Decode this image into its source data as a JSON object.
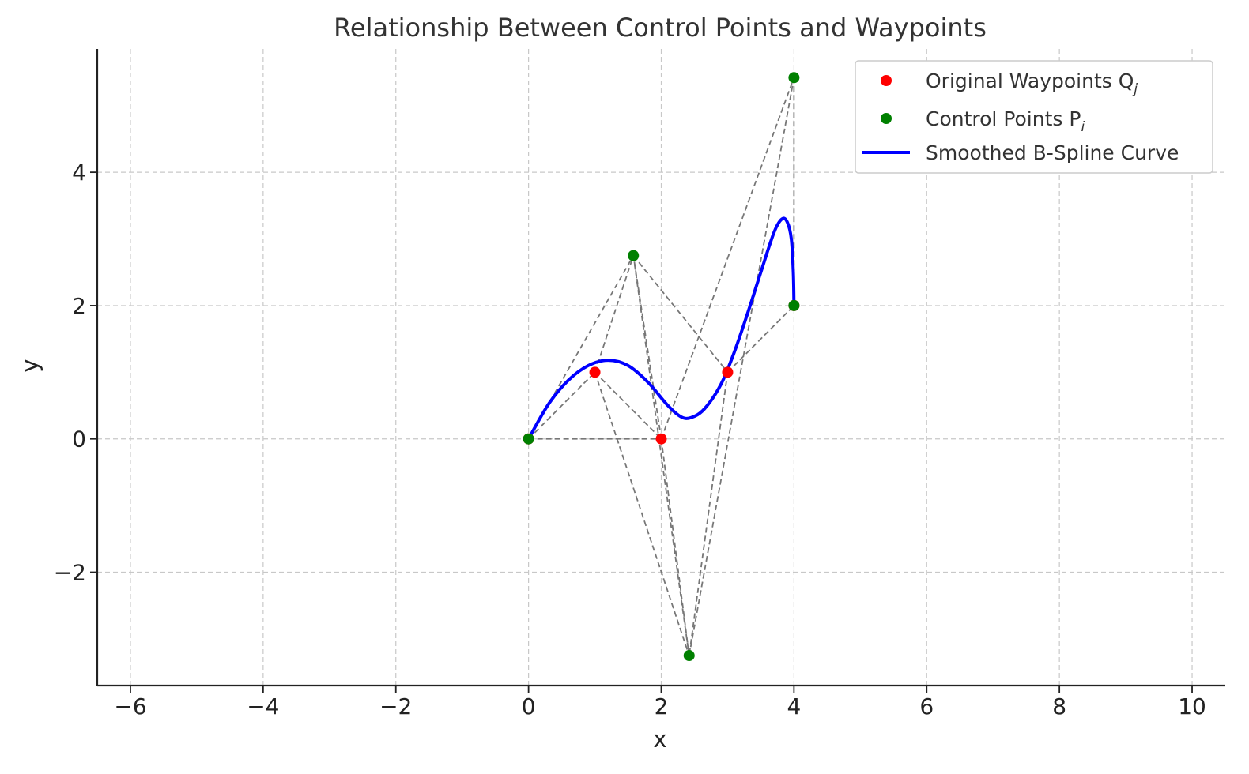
{
  "chart_data": {
    "type": "scatter",
    "title": "Relationship Between Control Points and Waypoints",
    "xlabel": "x",
    "ylabel": "y",
    "xlim": [
      -6.5,
      10.5
    ],
    "ylim": [
      -3.7,
      5.85
    ],
    "xticks": [
      -6,
      -4,
      -2,
      0,
      2,
      4,
      6,
      8,
      10
    ],
    "yticks": [
      -2,
      0,
      2,
      4
    ],
    "xtick_labels": [
      "−6",
      "−4",
      "−2",
      "0",
      "2",
      "4",
      "6",
      "8",
      "10"
    ],
    "ytick_labels": [
      "−2",
      "0",
      "2",
      "4"
    ],
    "grid": true,
    "legend_position": "top-right",
    "series": [
      {
        "name": "Original Waypoints Q",
        "name_subscript": "j",
        "kind": "points",
        "color": "#ff0000",
        "points": [
          [
            0,
            0
          ],
          [
            1,
            1
          ],
          [
            2,
            0
          ],
          [
            3,
            1
          ],
          [
            4,
            2
          ]
        ]
      },
      {
        "name": "Control Points P",
        "name_subscript": "i",
        "kind": "points",
        "color": "#008000",
        "points": [
          [
            0,
            0
          ],
          [
            1.58,
            2.75
          ],
          [
            2.42,
            -3.25
          ],
          [
            4.0,
            5.42
          ],
          [
            4.0,
            2.0
          ]
        ]
      },
      {
        "name": "Smoothed B-Spline Curve",
        "kind": "line",
        "color": "#0000ff",
        "points": [
          [
            0,
            0
          ],
          [
            0.3,
            0.52
          ],
          [
            0.6,
            0.88
          ],
          [
            0.9,
            1.1
          ],
          [
            1.2,
            1.18
          ],
          [
            1.5,
            1.1
          ],
          [
            1.8,
            0.85
          ],
          [
            2.1,
            0.5
          ],
          [
            2.3,
            0.33
          ],
          [
            2.45,
            0.32
          ],
          [
            2.65,
            0.45
          ],
          [
            2.9,
            0.82
          ],
          [
            3.1,
            1.3
          ],
          [
            3.3,
            1.88
          ],
          [
            3.5,
            2.5
          ],
          [
            3.7,
            3.1
          ],
          [
            3.82,
            3.3
          ],
          [
            3.9,
            3.25
          ],
          [
            3.96,
            3.0
          ],
          [
            3.99,
            2.5
          ],
          [
            4.0,
            2.0
          ]
        ]
      }
    ],
    "connections": [
      [
        [
          0,
          0
        ],
        [
          1.58,
          2.75
        ]
      ],
      [
        [
          1.58,
          2.75
        ],
        [
          2.42,
          -3.25
        ]
      ],
      [
        [
          2.42,
          -3.25
        ],
        [
          4.0,
          5.42
        ]
      ],
      [
        [
          4.0,
          5.42
        ],
        [
          4.0,
          2.0
        ]
      ],
      [
        [
          0,
          0
        ],
        [
          1,
          1
        ]
      ],
      [
        [
          1,
          1
        ],
        [
          2.42,
          -3.25
        ]
      ],
      [
        [
          0,
          0
        ],
        [
          2,
          0
        ]
      ],
      [
        [
          2,
          0
        ],
        [
          1.58,
          2.75
        ]
      ],
      [
        [
          1.58,
          2.75
        ],
        [
          3,
          1
        ]
      ],
      [
        [
          3,
          1
        ],
        [
          2.42,
          -3.25
        ]
      ],
      [
        [
          1,
          1
        ],
        [
          1.58,
          2.75
        ]
      ],
      [
        [
          2,
          0
        ],
        [
          2.42,
          -3.25
        ]
      ],
      [
        [
          3,
          1
        ],
        [
          4.0,
          2.0
        ]
      ],
      [
        [
          2,
          0
        ],
        [
          4.0,
          5.42
        ]
      ],
      [
        [
          1,
          1
        ],
        [
          2,
          0
        ]
      ]
    ],
    "connection_color": "#777777"
  }
}
